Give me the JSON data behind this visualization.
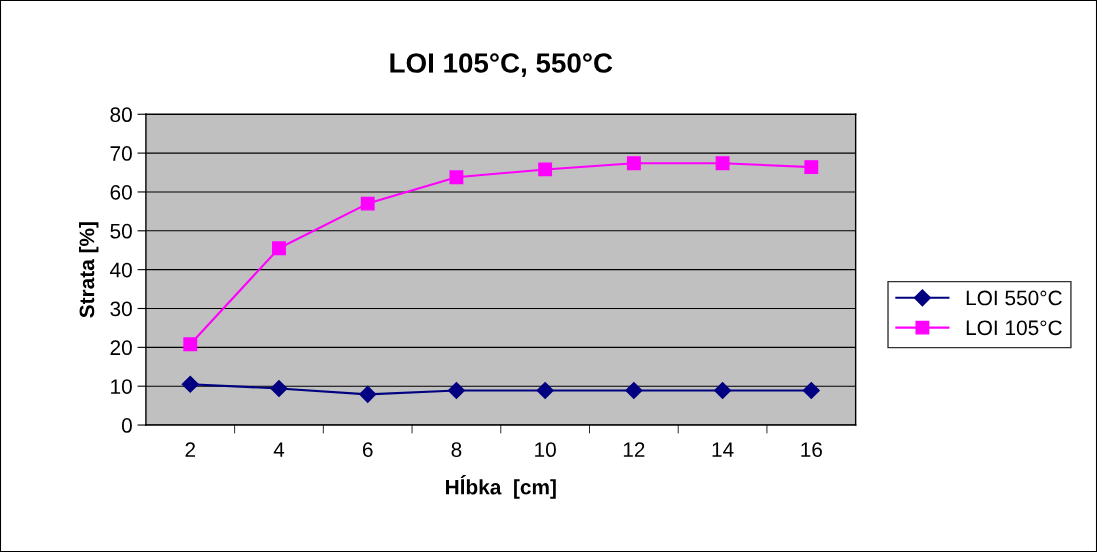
{
  "chart_data": {
    "type": "line",
    "title": "LOI 105°C, 550°C",
    "xlabel": "Hĺbka  [cm]",
    "ylabel": "Strata [%]",
    "categories": [
      "2",
      "4",
      "6",
      "8",
      "10",
      "12",
      "14",
      "16"
    ],
    "series": [
      {
        "name": "LOI 550°C",
        "color": "#000080",
        "marker": "diamond",
        "values": [
          10.5,
          9.4,
          7.9,
          8.9,
          8.9,
          8.9,
          8.9,
          8.9
        ]
      },
      {
        "name": "LOI 105°C",
        "color": "#ff00ff",
        "marker": "square",
        "values": [
          20.8,
          45.5,
          57.0,
          63.8,
          65.8,
          67.4,
          67.4,
          66.4
        ]
      }
    ],
    "ylim": [
      0,
      80
    ],
    "yticks": [
      0,
      10,
      20,
      30,
      40,
      50,
      60,
      70,
      80
    ],
    "grid": "y",
    "legend": "right",
    "line_style": "solid"
  }
}
